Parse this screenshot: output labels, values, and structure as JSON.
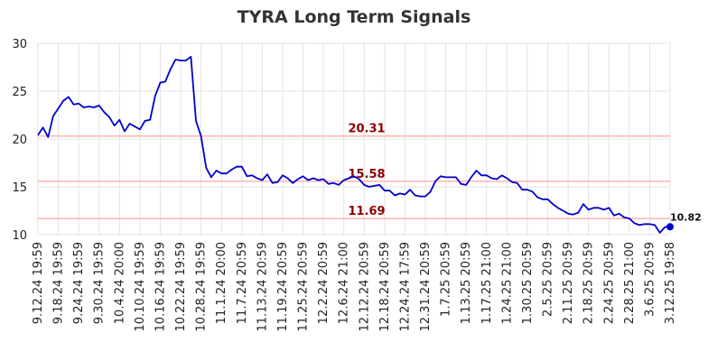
{
  "chart_data": {
    "type": "line",
    "title": "TYRA Long Term Signals",
    "ylim": [
      10,
      30
    ],
    "yticks": [
      10,
      15,
      20,
      25,
      30
    ],
    "xtick_labels": [
      "9.12.24 19:59",
      "9.18.24 19:59",
      "9.24.24 19:59",
      "9.30.24 19:59",
      "10.4.24 20:00",
      "10.10.24 19:59",
      "10.16.24 19:59",
      "10.22.24 19:59",
      "10.28.24 19:59",
      "11.1.24 20:00",
      "11.7.24 20:59",
      "11.13.24 20:59",
      "11.19.24 20:59",
      "11.25.24 20:59",
      "12.2.24 20:59",
      "12.6.24 21:00",
      "12.12.24 20:59",
      "12.18.24 20:59",
      "12.24.24 17:59",
      "12.31.24 20:59",
      "1.7.25 20:59",
      "1.13.25 20:59",
      "1.17.25 21:00",
      "1.24.25 21:00",
      "1.30.25 20:59",
      "2.5.25 20:59",
      "2.11.25 20:59",
      "2.18.25 20:59",
      "2.24.25 20:59",
      "2.28.25 21:00",
      "3.6.25 20:59",
      "3.12.25 19:58"
    ],
    "grid": true,
    "levels": [
      {
        "label": "20.31",
        "value": 20.31
      },
      {
        "label": "15.58",
        "value": 15.58
      },
      {
        "label": "11.69",
        "value": 11.69
      }
    ],
    "last_point": {
      "label": "10.82",
      "value": 10.82
    },
    "series": [
      {
        "color": "#0000cc",
        "values": [
          20.4,
          21.2,
          20.2,
          22.4,
          23.2,
          24.0,
          24.4,
          23.6,
          23.7,
          23.3,
          23.4,
          23.3,
          23.5,
          22.8,
          22.3,
          21.4,
          22.0,
          20.8,
          21.6,
          21.3,
          21.0,
          21.9,
          22.0,
          24.5,
          25.9,
          26.0,
          27.3,
          28.3,
          28.2,
          28.2,
          28.6,
          21.9,
          20.3,
          17.0,
          16.0,
          16.7,
          16.4,
          16.4,
          16.8,
          17.1,
          17.1,
          16.1,
          16.2,
          15.9,
          15.7,
          16.3,
          15.4,
          15.5,
          16.2,
          15.9,
          15.4,
          15.8,
          16.1,
          15.7,
          15.9,
          15.7,
          15.8,
          15.3,
          15.4,
          15.2,
          15.7,
          15.9,
          16.1,
          15.8,
          15.2,
          15.0,
          15.1,
          15.2,
          14.6,
          14.6,
          14.1,
          14.3,
          14.2,
          14.7,
          14.1,
          14.0,
          14.0,
          14.5,
          15.6,
          16.1,
          16.0,
          16.0,
          16.0,
          15.3,
          15.2,
          16.0,
          16.7,
          16.2,
          16.2,
          15.9,
          15.8,
          16.2,
          15.9,
          15.5,
          15.4,
          14.7,
          14.7,
          14.5,
          13.9,
          13.7,
          13.7,
          13.2,
          12.8,
          12.5,
          12.2,
          12.1,
          12.3,
          13.2,
          12.6,
          12.8,
          12.8,
          12.6,
          12.8,
          12.0,
          12.2,
          11.8,
          11.7,
          11.2,
          11.0,
          11.1,
          11.1,
          11.0,
          10.2,
          10.8,
          10.82
        ]
      }
    ]
  }
}
